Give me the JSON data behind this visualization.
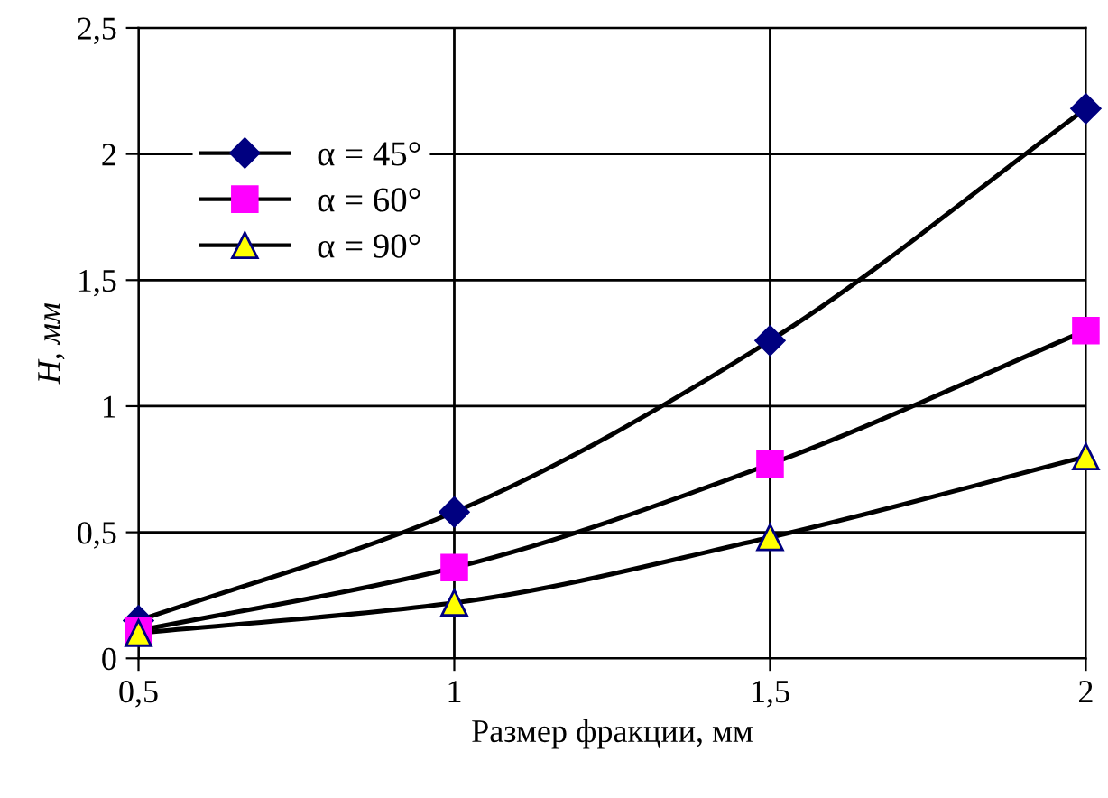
{
  "chart_data": {
    "type": "line",
    "xlabel": "Размер фракции, мм",
    "ylabel": "H, мм",
    "x": [
      0.5,
      1,
      1.5,
      2
    ],
    "series": [
      {
        "name": "α = 45°",
        "color": "#000080",
        "marker": "diamond",
        "values": [
          0.15,
          0.58,
          1.26,
          2.18
        ]
      },
      {
        "name": "α = 60°",
        "color": "#ff00ff",
        "marker": "square",
        "values": [
          0.11,
          0.36,
          0.77,
          1.3
        ]
      },
      {
        "name": "α = 90°",
        "color": "#ffff00",
        "marker": "triangle",
        "values": [
          0.1,
          0.22,
          0.48,
          0.8
        ]
      }
    ],
    "xlim": [
      0.5,
      2
    ],
    "xticks": [
      {
        "value": 0.5,
        "label": "0,5"
      },
      1,
      {
        "value": 1.5,
        "label": "1,5"
      },
      2
    ],
    "ylim": [
      0,
      2.5
    ],
    "yticks": [
      0,
      {
        "value": 0.5,
        "label": "0,5"
      },
      1,
      {
        "value": 1.5,
        "label": "1,5"
      },
      2,
      {
        "value": 2.5,
        "label": "2,5"
      }
    ],
    "grid": true,
    "legend": "top left",
    "line_style": "solid"
  }
}
